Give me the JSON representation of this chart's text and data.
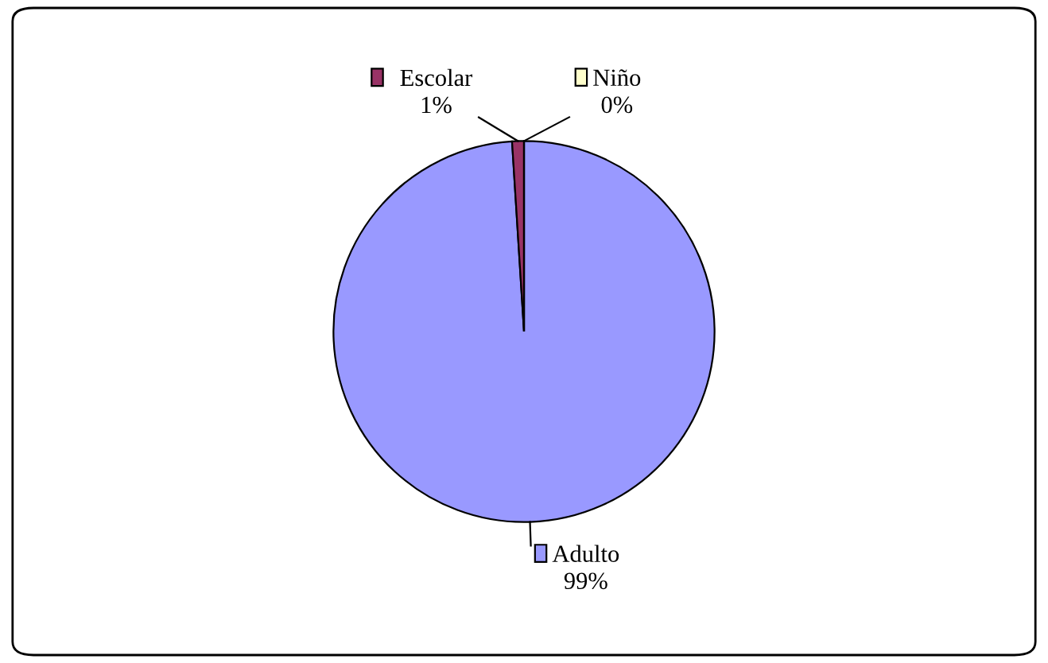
{
  "chart_data": {
    "type": "pie",
    "categories": [
      "Adulto",
      "Escolar",
      "Niño"
    ],
    "values": [
      99,
      1,
      0
    ],
    "colors": [
      "#9999ff",
      "#993366",
      "#ffffcc"
    ],
    "value_labels": [
      "99%",
      "1%",
      "0%"
    ],
    "legend": "top"
  }
}
